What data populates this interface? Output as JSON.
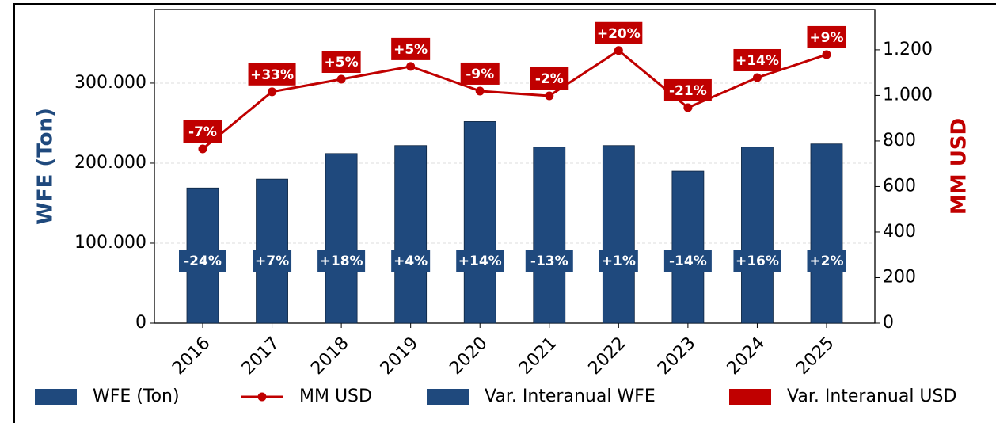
{
  "chart_data": {
    "type": "bar",
    "categories": [
      "2016",
      "2017",
      "2018",
      "2019",
      "2020",
      "2021",
      "2022",
      "2023",
      "2024",
      "2025"
    ],
    "ylabel": "WFE (Ton)",
    "y2label": "MM USD",
    "ylim": [
      0,
      392000
    ],
    "yticks": [
      0,
      {
        "value": 100000,
        "label": "100.000"
      },
      {
        "value": 200000,
        "label": "200.000"
      },
      {
        "value": 300000,
        "label": "300.000"
      }
    ],
    "y2lim": [
      0,
      1377
    ],
    "y2ticks": [
      0,
      200,
      400,
      600,
      800,
      {
        "value": 1000,
        "label": "1.000"
      },
      {
        "value": 1200,
        "label": "1.200"
      }
    ],
    "grid": true,
    "legend": "bottom",
    "series": [
      {
        "name": "WFE (Ton)",
        "type": "bar",
        "color": "#1f497d",
        "values": [
          169000,
          180000,
          212000,
          222000,
          252000,
          220000,
          222000,
          190000,
          220000,
          224000
        ]
      },
      {
        "name": "MM USD",
        "type": "line",
        "axis": "y2",
        "color": "#c00000",
        "values": [
          765,
          1016,
          1071,
          1127,
          1019,
          998,
          1197,
          946,
          1078,
          1179
        ]
      },
      {
        "name": "Var. Interanual WFE",
        "type": "label",
        "color": "#1f497d",
        "values": [
          -24,
          7,
          18,
          4,
          14,
          -13,
          1,
          -14,
          16,
          2
        ],
        "value_labels": [
          "-24%",
          "+7%",
          "+18%",
          "+4%",
          "+14%",
          "-13%",
          "+1%",
          "-14%",
          "+16%",
          "+2%"
        ]
      },
      {
        "name": "Var. Interanual USD",
        "type": "label",
        "color": "#c00000",
        "values": [
          -7,
          33,
          5,
          5,
          -9,
          -2,
          20,
          -21,
          14,
          9
        ],
        "value_labels": [
          "-7%",
          "+33%",
          "+5%",
          "+5%",
          "-9%",
          "-2%",
          "+20%",
          "-21%",
          "+14%",
          "+9%"
        ]
      }
    ]
  }
}
